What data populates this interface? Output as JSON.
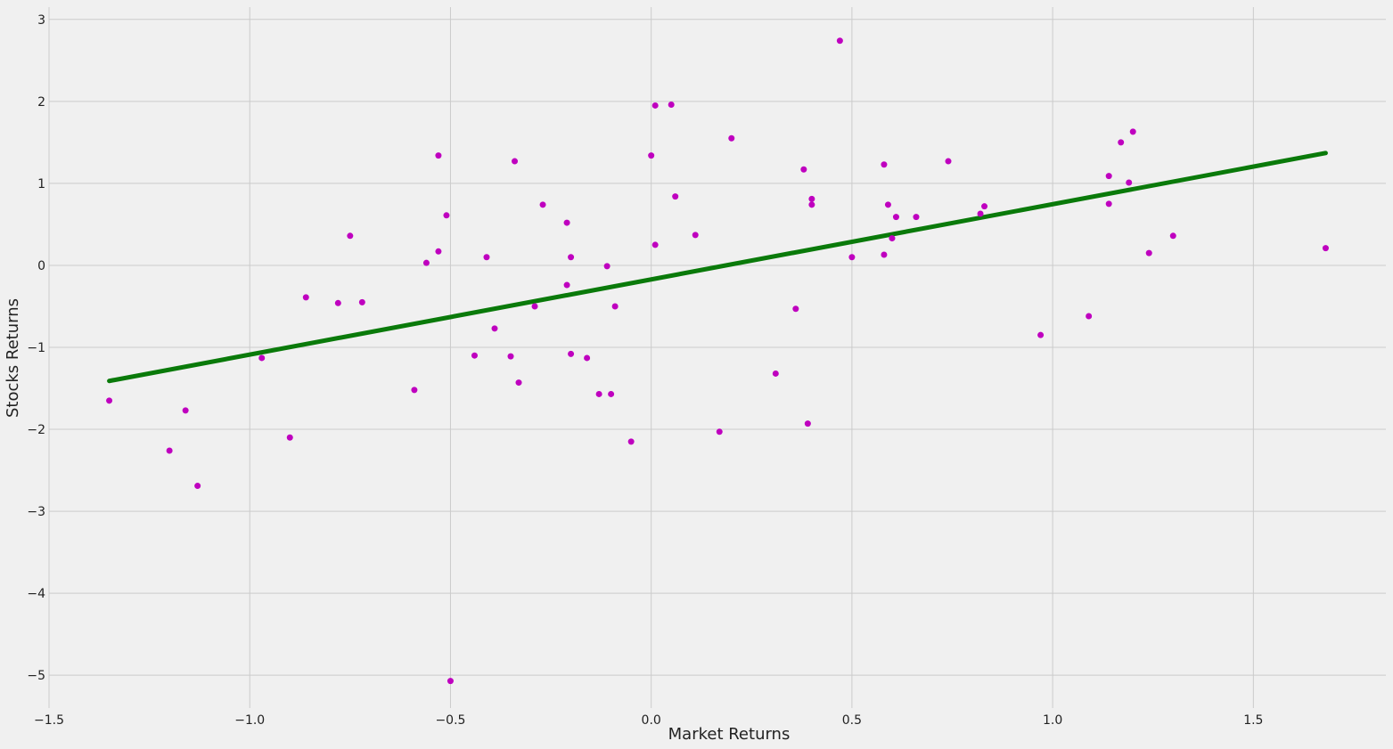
{
  "chart_data": {
    "type": "scatter",
    "title": "",
    "xlabel": "Market Returns",
    "ylabel": "Stocks Returns",
    "xlim": [
      -1.5,
      1.83
    ],
    "ylim": [
      -5.4,
      3.15
    ],
    "xticks": [
      -1.5,
      -1.0,
      -0.5,
      0.0,
      0.5,
      1.0,
      1.5
    ],
    "xtick_labels": [
      "−1.5",
      "−1.0",
      "−0.5",
      "0.0",
      "0.5",
      "1.0",
      "1.5"
    ],
    "yticks": [
      -5,
      -4,
      -3,
      -2,
      -1,
      0,
      1,
      2,
      3
    ],
    "ytick_labels": [
      "−5",
      "−4",
      "−3",
      "−2",
      "−1",
      "0",
      "1",
      "2",
      "3"
    ],
    "grid": true,
    "colors": {
      "points": "#bf00bf",
      "fit_line": "#0a7a0a",
      "background": "#f0f0f0",
      "grid": "#cbcbcb"
    },
    "points": [
      [
        -1.35,
        -1.65
      ],
      [
        -1.2,
        -2.26
      ],
      [
        -1.16,
        -1.77
      ],
      [
        -1.13,
        -2.69
      ],
      [
        -0.97,
        -1.13
      ],
      [
        -0.9,
        -2.1
      ],
      [
        -0.86,
        -0.39
      ],
      [
        -0.78,
        -0.46
      ],
      [
        -0.75,
        0.36
      ],
      [
        -0.72,
        -0.45
      ],
      [
        -0.59,
        -1.52
      ],
      [
        -0.56,
        0.03
      ],
      [
        -0.53,
        1.34
      ],
      [
        -0.53,
        0.17
      ],
      [
        -0.51,
        0.61
      ],
      [
        -0.5,
        -5.07
      ],
      [
        -0.44,
        -1.1
      ],
      [
        -0.41,
        0.1
      ],
      [
        -0.39,
        -0.77
      ],
      [
        -0.35,
        -1.11
      ],
      [
        -0.34,
        1.27
      ],
      [
        -0.33,
        -1.43
      ],
      [
        -0.29,
        -0.5
      ],
      [
        -0.27,
        0.74
      ],
      [
        -0.21,
        0.52
      ],
      [
        -0.21,
        -0.24
      ],
      [
        -0.2,
        0.1
      ],
      [
        -0.2,
        -1.08
      ],
      [
        -0.16,
        -1.13
      ],
      [
        -0.13,
        -1.57
      ],
      [
        -0.11,
        -0.01
      ],
      [
        -0.1,
        -1.57
      ],
      [
        -0.09,
        -0.5
      ],
      [
        -0.05,
        -2.15
      ],
      [
        0.0,
        1.34
      ],
      [
        0.01,
        1.95
      ],
      [
        0.01,
        0.25
      ],
      [
        0.05,
        1.96
      ],
      [
        0.06,
        0.84
      ],
      [
        0.11,
        0.37
      ],
      [
        0.17,
        -2.03
      ],
      [
        0.2,
        1.55
      ],
      [
        0.31,
        -1.32
      ],
      [
        0.36,
        -0.53
      ],
      [
        0.38,
        1.17
      ],
      [
        0.39,
        -1.93
      ],
      [
        0.4,
        0.81
      ],
      [
        0.4,
        0.74
      ],
      [
        0.47,
        2.74
      ],
      [
        0.5,
        0.1
      ],
      [
        0.58,
        1.23
      ],
      [
        0.58,
        0.13
      ],
      [
        0.59,
        0.74
      ],
      [
        0.6,
        0.33
      ],
      [
        0.61,
        0.59
      ],
      [
        0.66,
        0.59
      ],
      [
        0.74,
        1.27
      ],
      [
        0.82,
        0.63
      ],
      [
        0.83,
        0.72
      ],
      [
        0.97,
        -0.85
      ],
      [
        1.09,
        -0.62
      ],
      [
        1.14,
        0.75
      ],
      [
        1.14,
        1.09
      ],
      [
        1.17,
        1.5
      ],
      [
        1.19,
        1.01
      ],
      [
        1.2,
        1.63
      ],
      [
        1.24,
        0.15
      ],
      [
        1.3,
        0.36
      ],
      [
        1.68,
        0.21
      ]
    ],
    "fit_line": {
      "x": [
        -1.35,
        1.68
      ],
      "y": [
        -1.41,
        1.37
      ]
    }
  }
}
